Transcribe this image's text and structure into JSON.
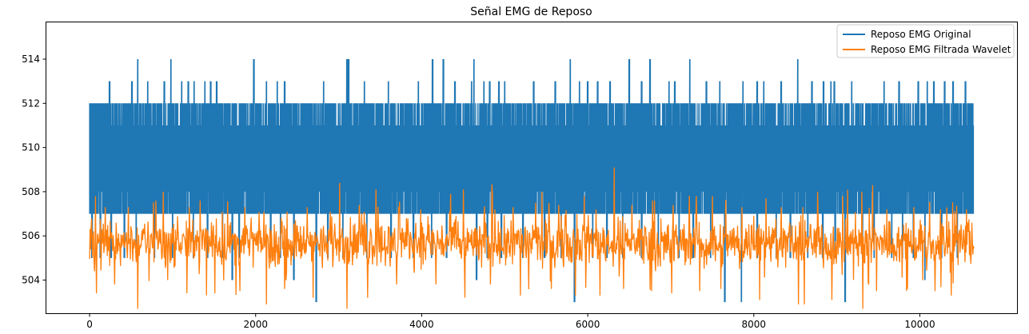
{
  "chart_data": {
    "type": "line",
    "title": "Señal EMG de Reposo",
    "xlabel": "",
    "ylabel": "",
    "xlim": [
      -530,
      11170
    ],
    "ylim": [
      502.5,
      515.7
    ],
    "xticks": [
      0,
      2000,
      4000,
      6000,
      8000,
      10000
    ],
    "xtick_labels": [
      "0",
      "2000",
      "4000",
      "6000",
      "8000",
      "10000"
    ],
    "yticks": [
      504,
      506,
      508,
      510,
      512,
      514
    ],
    "ytick_labels": [
      "504",
      "506",
      "508",
      "510",
      "512",
      "514"
    ],
    "grid": false,
    "legend_position": "top-right",
    "x_range": [
      0,
      10650
    ],
    "series": [
      {
        "name": "Reposo EMG Original",
        "color": "#1f77b4",
        "band": {
          "low": 507,
          "high": 512
        },
        "value_range": [
          503,
          514
        ],
        "peaks": [
          [
            30,
            512
          ],
          [
            140,
            512
          ],
          [
            240,
            513
          ],
          [
            330,
            512
          ],
          [
            440,
            512
          ],
          [
            510,
            513
          ],
          [
            580,
            514
          ],
          [
            700,
            513
          ],
          [
            820,
            512
          ],
          [
            900,
            513
          ],
          [
            980,
            514
          ],
          [
            1110,
            513
          ],
          [
            1190,
            513
          ],
          [
            1260,
            513
          ],
          [
            1390,
            513
          ],
          [
            1460,
            513
          ],
          [
            1530,
            513
          ],
          [
            1660,
            512
          ],
          [
            1760,
            512
          ],
          [
            1980,
            514
          ],
          [
            2130,
            513
          ],
          [
            2260,
            513
          ],
          [
            2350,
            513
          ],
          [
            2600,
            512
          ],
          [
            2820,
            513
          ],
          [
            3100,
            514
          ],
          [
            3120,
            514
          ],
          [
            3200,
            512
          ],
          [
            3310,
            513
          ],
          [
            3600,
            513
          ],
          [
            3800,
            512
          ],
          [
            3960,
            513
          ],
          [
            4130,
            514
          ],
          [
            4260,
            514
          ],
          [
            4400,
            513
          ],
          [
            4600,
            513
          ],
          [
            4630,
            514
          ],
          [
            4750,
            513
          ],
          [
            4820,
            513
          ],
          [
            4930,
            513
          ],
          [
            5000,
            513
          ],
          [
            5200,
            512
          ],
          [
            5350,
            513
          ],
          [
            5610,
            513
          ],
          [
            5720,
            512
          ],
          [
            5790,
            514
          ],
          [
            5900,
            513
          ],
          [
            6000,
            513
          ],
          [
            6120,
            513
          ],
          [
            6270,
            513
          ],
          [
            6500,
            514
          ],
          [
            6650,
            513
          ],
          [
            6750,
            514
          ],
          [
            6980,
            513
          ],
          [
            7050,
            513
          ],
          [
            7230,
            514
          ],
          [
            7430,
            513
          ],
          [
            7590,
            513
          ],
          [
            7770,
            512
          ],
          [
            7870,
            513
          ],
          [
            8040,
            513
          ],
          [
            8120,
            513
          ],
          [
            8330,
            513
          ],
          [
            8530,
            514
          ],
          [
            8700,
            513
          ],
          [
            8840,
            513
          ],
          [
            8930,
            513
          ],
          [
            8970,
            513
          ],
          [
            9180,
            513
          ],
          [
            9350,
            512
          ],
          [
            9570,
            513
          ],
          [
            9660,
            512
          ],
          [
            9750,
            513
          ],
          [
            9860,
            512
          ],
          [
            9980,
            513
          ],
          [
            10090,
            513
          ],
          [
            10170,
            513
          ],
          [
            10300,
            513
          ],
          [
            10400,
            513
          ],
          [
            10550,
            513
          ]
        ],
        "troughs": [
          [
            30,
            505
          ],
          [
            130,
            505
          ],
          [
            260,
            505
          ],
          [
            420,
            505
          ],
          [
            560,
            505
          ],
          [
            780,
            505
          ],
          [
            1000,
            505
          ],
          [
            1250,
            505
          ],
          [
            1420,
            505
          ],
          [
            1600,
            505
          ],
          [
            1720,
            504
          ],
          [
            1800,
            505
          ],
          [
            2180,
            505
          ],
          [
            2300,
            505
          ],
          [
            2460,
            504
          ],
          [
            2730,
            503
          ],
          [
            2870,
            505
          ],
          [
            3050,
            505
          ],
          [
            3340,
            505
          ],
          [
            3630,
            505
          ],
          [
            3900,
            505
          ],
          [
            4120,
            505
          ],
          [
            4300,
            505
          ],
          [
            4660,
            504
          ],
          [
            4790,
            505
          ],
          [
            4960,
            505
          ],
          [
            5220,
            505
          ],
          [
            5480,
            505
          ],
          [
            5680,
            505
          ],
          [
            5840,
            503
          ],
          [
            6060,
            505
          ],
          [
            6230,
            505
          ],
          [
            6420,
            505
          ],
          [
            6650,
            505
          ],
          [
            6850,
            505
          ],
          [
            7100,
            505
          ],
          [
            7270,
            505
          ],
          [
            7480,
            505
          ],
          [
            7650,
            503
          ],
          [
            7850,
            503
          ],
          [
            8040,
            505
          ],
          [
            8270,
            505
          ],
          [
            8440,
            505
          ],
          [
            8650,
            505
          ],
          [
            8830,
            505
          ],
          [
            8980,
            505
          ],
          [
            9100,
            503
          ],
          [
            9310,
            505
          ],
          [
            9450,
            505
          ],
          [
            9660,
            505
          ],
          [
            9790,
            505
          ],
          [
            9920,
            505
          ],
          [
            10060,
            504
          ],
          [
            10260,
            505
          ],
          [
            10450,
            505
          ]
        ]
      },
      {
        "name": "Reposo EMG Filtrada Wavelet",
        "color": "#ff7f0e",
        "baseline": 505.7,
        "value_range": [
          502.7,
          509.1
        ],
        "peaks": [
          [
            70,
            507.8
          ],
          [
            190,
            507.3
          ],
          [
            470,
            507.3
          ],
          [
            800,
            507.6
          ],
          [
            890,
            508.0
          ],
          [
            1200,
            507.3
          ],
          [
            1330,
            507.6
          ],
          [
            1600,
            507.1
          ],
          [
            1870,
            507.3
          ],
          [
            2100,
            507.1
          ],
          [
            2380,
            507.1
          ],
          [
            2620,
            507.3
          ],
          [
            2900,
            507.1
          ],
          [
            3010,
            508.4
          ],
          [
            3250,
            507.4
          ],
          [
            3450,
            508.1
          ],
          [
            3720,
            507.3
          ],
          [
            3990,
            507.2
          ],
          [
            4350,
            507.9
          ],
          [
            4500,
            508.1
          ],
          [
            4880,
            507.2
          ],
          [
            5100,
            507.3
          ],
          [
            5370,
            507.5
          ],
          [
            5450,
            508.0
          ],
          [
            5650,
            507.4
          ],
          [
            5960,
            507.8
          ],
          [
            6100,
            507.2
          ],
          [
            6320,
            509.1
          ],
          [
            6530,
            507.4
          ],
          [
            6780,
            507.6
          ],
          [
            7030,
            507.4
          ],
          [
            7310,
            507.8
          ],
          [
            7500,
            507.8
          ],
          [
            7860,
            507.3
          ],
          [
            8150,
            507.7
          ],
          [
            8330,
            507.3
          ],
          [
            8590,
            507.3
          ],
          [
            8770,
            508.0
          ],
          [
            9070,
            507.8
          ],
          [
            9300,
            508.0
          ],
          [
            9600,
            507.2
          ],
          [
            9930,
            507.3
          ],
          [
            10250,
            507.2
          ],
          [
            10560,
            507.2
          ]
        ],
        "troughs": [
          [
            60,
            504.4
          ],
          [
            80,
            503.4
          ],
          [
            300,
            503.8
          ],
          [
            580,
            502.7
          ],
          [
            940,
            504.0
          ],
          [
            1170,
            503.4
          ],
          [
            1510,
            503.4
          ],
          [
            1810,
            503.5
          ],
          [
            2130,
            502.9
          ],
          [
            2350,
            503.6
          ],
          [
            2690,
            503.2
          ],
          [
            3100,
            502.7
          ],
          [
            3350,
            503.2
          ],
          [
            3700,
            503.8
          ],
          [
            4170,
            503.8
          ],
          [
            4520,
            503.2
          ],
          [
            4830,
            503.8
          ],
          [
            5190,
            503.3
          ],
          [
            5560,
            503.6
          ],
          [
            5850,
            503.3
          ],
          [
            6150,
            503.3
          ],
          [
            6430,
            503.6
          ],
          [
            6770,
            503.5
          ],
          [
            7010,
            503.4
          ],
          [
            7350,
            503.5
          ],
          [
            7600,
            503.6
          ],
          [
            8070,
            503.1
          ],
          [
            8540,
            502.9
          ],
          [
            8610,
            502.9
          ],
          [
            8940,
            503.1
          ],
          [
            9310,
            502.7
          ],
          [
            9480,
            503.5
          ],
          [
            9850,
            503.6
          ],
          [
            10180,
            503.5
          ],
          [
            10380,
            503.3
          ]
        ]
      }
    ]
  }
}
